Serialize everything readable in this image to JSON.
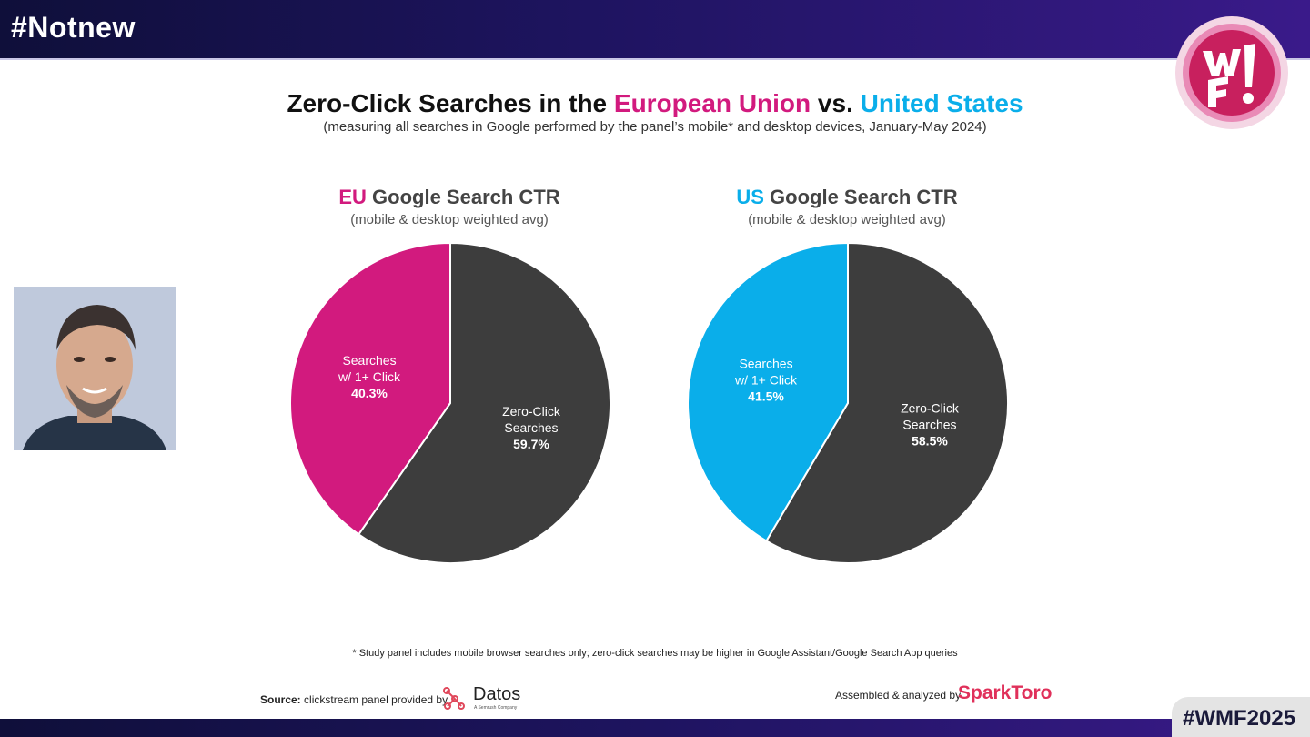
{
  "header": {
    "title": "#Notnew"
  },
  "title": {
    "prefix": "Zero-Click Searches in the ",
    "eu": "European Union",
    "vs": " vs. ",
    "us": "United States",
    "subtitle": "(measuring all searches in Google performed by the panel’s mobile* and desktop devices, January-May 2024)"
  },
  "colors": {
    "eu": "#d21a7e",
    "us": "#0aaeea",
    "zero": "#3d3d3d"
  },
  "chart_data": [
    {
      "type": "pie",
      "title_prefix": "EU",
      "title": "Google Search CTR",
      "subtitle": "(mobile & desktop weighted avg)",
      "slices": [
        {
          "label_line1": "Zero-Click",
          "label_line2": "Searches",
          "value": 59.7,
          "value_label": "59.7%",
          "color": "#3d3d3d"
        },
        {
          "label_line1": "Searches",
          "label_line2": "w/ 1+ Click",
          "value": 40.3,
          "value_label": "40.3%",
          "color": "#d21a7e"
        }
      ]
    },
    {
      "type": "pie",
      "title_prefix": "US",
      "title": "Google Search CTR",
      "subtitle": "(mobile & desktop weighted avg)",
      "slices": [
        {
          "label_line1": "Zero-Click",
          "label_line2": "Searches",
          "value": 58.5,
          "value_label": "58.5%",
          "color": "#3d3d3d"
        },
        {
          "label_line1": "Searches",
          "label_line2": "w/ 1+ Click",
          "value": 41.5,
          "value_label": "41.5%",
          "color": "#0aaeea"
        }
      ]
    }
  ],
  "footer": {
    "footnote": "* Study panel includes mobile browser searches only; zero-click searches may be higher in Google Assistant/Google Search App queries",
    "source_label": "Source:",
    "source_text": "clickstream panel provided by",
    "datos_name": "Datos",
    "datos_tag": "A Semrush Company",
    "assembled": "Assembled & analyzed by",
    "sparktoro": "SparkToro",
    "hashtag": "#WMF2025"
  }
}
